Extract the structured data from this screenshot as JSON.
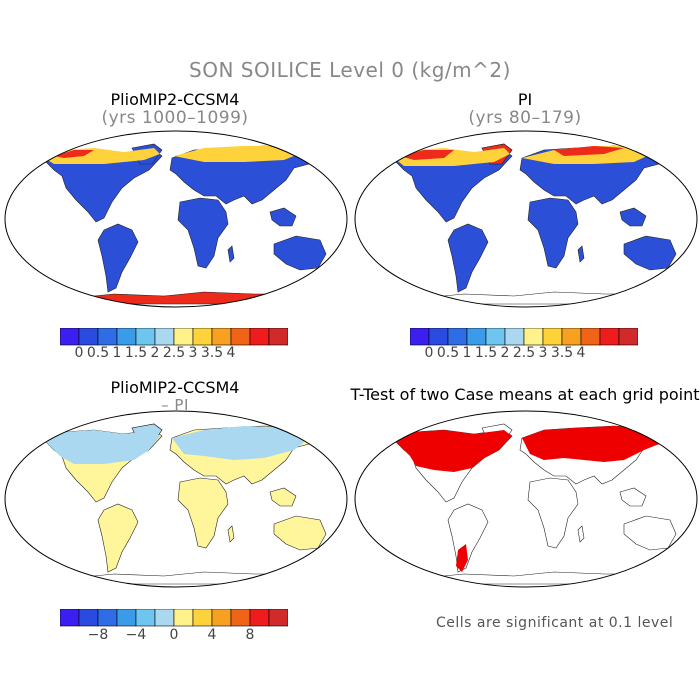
{
  "title": "SON SOILICE Level 0 (kg/m^2)",
  "panels": {
    "top_left": {
      "title": "PlioMIP2-CCSM4",
      "subtitle": "(yrs 1000–1099)"
    },
    "top_right": {
      "title": "PI",
      "subtitle": "(yrs 80–179)"
    },
    "bottom_left": {
      "title": "PlioMIP2-CCSM4",
      "subtitle": "– PI"
    },
    "bottom_right": {
      "title": "T-Test of two Case means at each grid point"
    }
  },
  "colorbar_top": {
    "colors": [
      "#3a1ff0",
      "#2a4be0",
      "#2f6de6",
      "#3a9be8",
      "#6ec6f0",
      "#a9d8f0",
      "#fff28a",
      "#fdd23a",
      "#f8a020",
      "#f06418",
      "#ee1c1c",
      "#d02a2a"
    ],
    "tick_labels": [
      "0",
      "0.5",
      "1",
      "1.5",
      "2",
      "2.5",
      "3",
      "3.5",
      "4"
    ]
  },
  "colorbar_diff": {
    "colors": [
      "#3a1ff0",
      "#2a4be0",
      "#2f6de6",
      "#3a9be8",
      "#6ec6f0",
      "#a9d8f0",
      "#fff28a",
      "#fdd23a",
      "#f8a020",
      "#f06418",
      "#ee1c1c",
      "#d02a2a"
    ],
    "tick_labels": [
      "−8",
      "−4",
      "0",
      "4",
      "8"
    ]
  },
  "significance_note": "Cells are significant at 0.1 level",
  "map_colors": {
    "ocean": "#ffffff",
    "coast": "#222222",
    "low_soilice": "#2c4fd8",
    "high_soilice": "#ee2a1a",
    "mid_soilice": "#fdd23a",
    "diff_positive_small": "#fff59a",
    "diff_negative_small": "#a9d8f0",
    "significant": "#ee0000"
  }
}
